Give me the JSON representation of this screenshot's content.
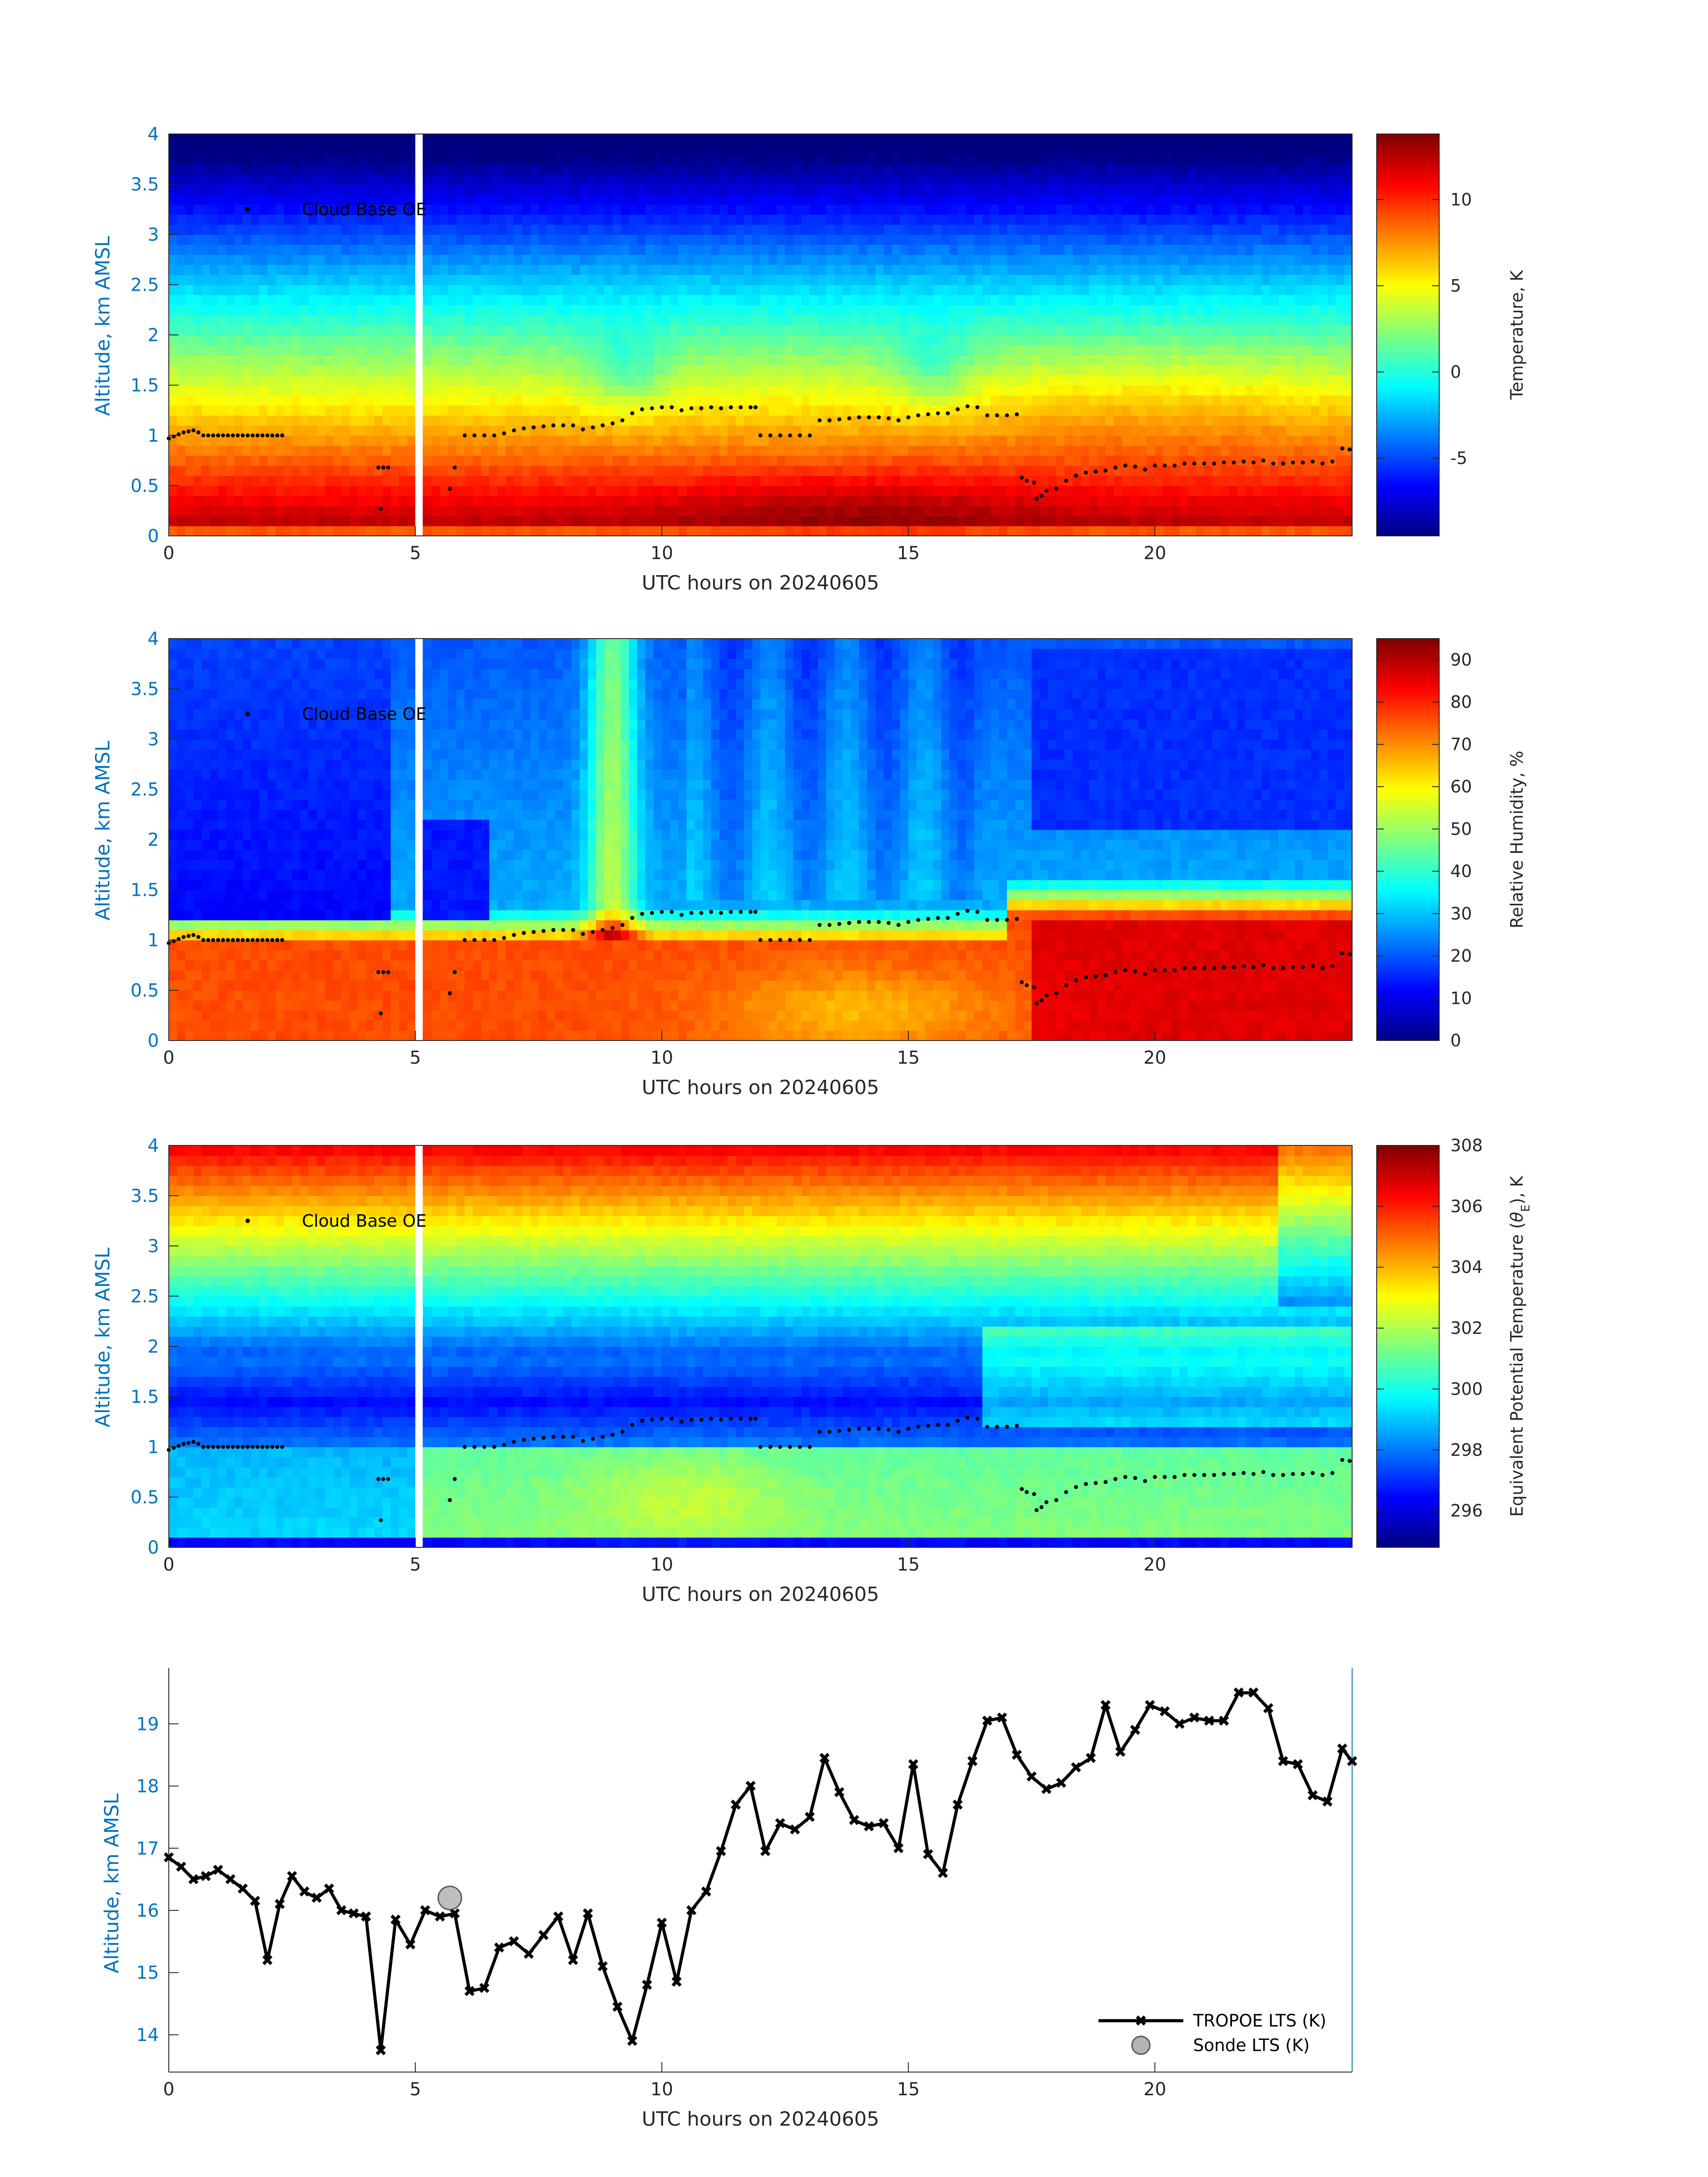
{
  "chart_data": [
    {
      "type": "heatmap",
      "variable": "temperature",
      "xlabel": "UTC hours on 20240605",
      "ylabel": "Altitude, km AMSL",
      "xlim": [
        0,
        24
      ],
      "ylim": [
        0,
        4
      ],
      "xticks": [
        0,
        5,
        10,
        15,
        20
      ],
      "yticks": [
        0,
        0.5,
        1,
        1.5,
        2,
        2.5,
        3,
        3.5,
        4
      ],
      "data_gap_hours": [
        5.0,
        5.15
      ],
      "colorbar": {
        "label": "Temperature, K",
        "range": [
          -9.5,
          13.8
        ],
        "ticks": [
          -5,
          0,
          5,
          10
        ],
        "colormap": "jet"
      },
      "annotation": "Cloud Base OE",
      "cloud_base_series": "cloud_base_km"
    },
    {
      "type": "heatmap",
      "variable": "relative_humidity",
      "xlabel": "UTC hours on 20240605",
      "ylabel": "Altitude, km AMSL",
      "xlim": [
        0,
        24
      ],
      "ylim": [
        0,
        4
      ],
      "xticks": [
        0,
        5,
        10,
        15,
        20
      ],
      "yticks": [
        0,
        0.5,
        1,
        1.5,
        2,
        2.5,
        3,
        3.5,
        4
      ],
      "data_gap_hours": [
        5.0,
        5.15
      ],
      "colorbar": {
        "label": "Relative Humidity, %",
        "range": [
          0,
          95
        ],
        "ticks": [
          0,
          10,
          20,
          30,
          40,
          50,
          60,
          70,
          80,
          90
        ],
        "colormap": "jet"
      },
      "annotation": "Cloud Base OE",
      "cloud_base_series": "cloud_base_km"
    },
    {
      "type": "heatmap",
      "variable": "equivalent_potential_temperature",
      "xlabel": "UTC hours on 20240605",
      "ylabel": "Altitude, km AMSL",
      "xlim": [
        0,
        24
      ],
      "ylim": [
        0,
        4
      ],
      "xticks": [
        0,
        5,
        10,
        15,
        20
      ],
      "yticks": [
        0,
        0.5,
        1,
        1.5,
        2,
        2.5,
        3,
        3.5,
        4
      ],
      "data_gap_hours": [
        5.0,
        5.15
      ],
      "colorbar": {
        "label": "Equivalent Potential Temperature (θE), K",
        "range": [
          294.8,
          308
        ],
        "ticks": [
          296,
          298,
          300,
          302,
          304,
          306,
          308
        ],
        "colormap": "jet"
      },
      "annotation": "Cloud Base OE",
      "cloud_base_series": "cloud_base_km"
    },
    {
      "type": "line",
      "xlabel": "UTC hours on 20240605",
      "ylabel": "Altitude, km AMSL",
      "xlim": [
        0,
        24
      ],
      "ylim": [
        13.4,
        19.9
      ],
      "xticks": [
        0,
        5,
        10,
        15,
        20
      ],
      "yticks": [
        14,
        15,
        16,
        17,
        18,
        19
      ],
      "legend_position": "bottom-right",
      "series": [
        {
          "name": "TROPOE LTS (K)",
          "x": [
            0.0,
            0.25,
            0.5,
            0.75,
            1.0,
            1.25,
            1.5,
            1.75,
            2.0,
            2.25,
            2.5,
            2.75,
            3.0,
            3.25,
            3.5,
            3.75,
            4.0,
            4.3,
            4.6,
            4.9,
            5.2,
            5.5,
            5.8,
            6.1,
            6.4,
            6.7,
            7.0,
            7.3,
            7.6,
            7.9,
            8.2,
            8.5,
            8.8,
            9.1,
            9.4,
            9.7,
            10.0,
            10.3,
            10.6,
            10.9,
            11.2,
            11.5,
            11.8,
            12.1,
            12.4,
            12.7,
            13.0,
            13.3,
            13.6,
            13.9,
            14.2,
            14.5,
            14.8,
            15.1,
            15.4,
            15.7,
            16.0,
            16.3,
            16.6,
            16.9,
            17.2,
            17.5,
            17.8,
            18.1,
            18.4,
            18.7,
            19.0,
            19.3,
            19.6,
            19.9,
            20.2,
            20.5,
            20.8,
            21.1,
            21.4,
            21.7,
            22.0,
            22.3,
            22.6,
            22.9,
            23.2,
            23.5,
            23.8,
            24.0
          ],
          "y": [
            16.85,
            16.7,
            16.5,
            16.55,
            16.65,
            16.5,
            16.35,
            16.15,
            15.2,
            16.1,
            16.55,
            16.3,
            16.2,
            16.35,
            16.0,
            15.95,
            15.9,
            13.75,
            15.85,
            15.45,
            16.0,
            15.9,
            15.95,
            14.7,
            14.75,
            15.4,
            15.5,
            15.3,
            15.6,
            15.9,
            15.2,
            15.95,
            15.1,
            14.45,
            13.9,
            14.8,
            15.8,
            14.85,
            16.0,
            16.3,
            16.95,
            17.7,
            18.0,
            16.95,
            17.4,
            17.3,
            17.5,
            18.45,
            17.9,
            17.45,
            17.35,
            17.4,
            17.0,
            18.35,
            16.9,
            16.6,
            17.7,
            18.4,
            19.05,
            19.1,
            18.5,
            18.15,
            17.95,
            18.05,
            18.3,
            18.45,
            19.3,
            18.55,
            18.9,
            19.3,
            19.2,
            19.0,
            19.1,
            19.05,
            19.05,
            19.5,
            19.5,
            19.25,
            18.4,
            18.35,
            17.85,
            17.75,
            18.6,
            18.4
          ]
        },
        {
          "name": "Sonde LTS (K)",
          "x": [
            5.7
          ],
          "y": [
            16.2
          ]
        }
      ]
    }
  ],
  "cloud_base_km": {
    "x": [
      0.0,
      0.1,
      0.2,
      0.3,
      0.4,
      0.5,
      0.6,
      0.7,
      0.8,
      0.9,
      1.0,
      1.1,
      1.2,
      1.3,
      1.4,
      1.5,
      1.6,
      1.7,
      1.8,
      1.9,
      2.0,
      2.1,
      2.2,
      2.3,
      4.25,
      4.3,
      4.35,
      4.45,
      5.7,
      5.8,
      6.0,
      6.2,
      6.4,
      6.6,
      6.8,
      7.0,
      7.2,
      7.4,
      7.6,
      7.8,
      8.0,
      8.2,
      8.4,
      8.6,
      8.8,
      9.0,
      9.2,
      9.4,
      9.6,
      9.8,
      10.0,
      10.2,
      10.4,
      10.6,
      10.8,
      11.0,
      11.2,
      11.4,
      11.6,
      11.8,
      11.9,
      12.0,
      12.2,
      12.4,
      12.6,
      12.8,
      13.0,
      13.2,
      13.4,
      13.6,
      13.8,
      14.0,
      14.2,
      14.4,
      14.6,
      14.8,
      15.0,
      15.2,
      15.4,
      15.6,
      15.8,
      16.0,
      16.2,
      16.4,
      16.6,
      16.8,
      17.0,
      17.2,
      17.3,
      17.4,
      17.55,
      17.6,
      17.7,
      17.8,
      18.0,
      18.2,
      18.4,
      18.6,
      18.8,
      19.0,
      19.2,
      19.4,
      19.6,
      19.8,
      20.0,
      20.2,
      20.4,
      20.6,
      20.8,
      21.0,
      21.2,
      21.4,
      21.6,
      21.8,
      22.0,
      22.2,
      22.4,
      22.6,
      22.8,
      23.0,
      23.2,
      23.4,
      23.6,
      23.8,
      23.95
    ],
    "y": [
      0.97,
      0.99,
      1.01,
      1.03,
      1.04,
      1.05,
      1.03,
      1.0,
      1.0,
      1.0,
      1.0,
      1.0,
      1.0,
      1.0,
      1.0,
      1.0,
      1.0,
      1.0,
      1.0,
      1.0,
      1.0,
      1.0,
      1.0,
      1.0,
      0.68,
      0.27,
      0.68,
      0.68,
      0.47,
      0.68,
      1.0,
      1.0,
      1.0,
      1.0,
      1.02,
      1.05,
      1.07,
      1.08,
      1.09,
      1.1,
      1.1,
      1.1,
      1.06,
      1.08,
      1.1,
      1.12,
      1.15,
      1.22,
      1.26,
      1.27,
      1.28,
      1.28,
      1.25,
      1.27,
      1.27,
      1.28,
      1.27,
      1.28,
      1.28,
      1.28,
      1.28,
      1.0,
      1.0,
      1.0,
      1.0,
      1.0,
      1.0,
      1.15,
      1.15,
      1.16,
      1.17,
      1.18,
      1.18,
      1.18,
      1.17,
      1.15,
      1.18,
      1.2,
      1.21,
      1.22,
      1.22,
      1.26,
      1.29,
      1.28,
      1.2,
      1.2,
      1.2,
      1.21,
      0.58,
      0.55,
      0.53,
      0.37,
      0.4,
      0.45,
      0.47,
      0.55,
      0.6,
      0.63,
      0.64,
      0.65,
      0.68,
      0.7,
      0.69,
      0.66,
      0.7,
      0.7,
      0.7,
      0.72,
      0.72,
      0.72,
      0.72,
      0.73,
      0.73,
      0.74,
      0.73,
      0.75,
      0.72,
      0.72,
      0.73,
      0.73,
      0.74,
      0.72,
      0.74,
      0.87,
      0.86
    ]
  },
  "ui": {
    "panels_xlabel": "UTC hours on 20240605",
    "panels_ylabel": "Altitude, km AMSL",
    "annotation": "Cloud Base OE",
    "cb1_label": "Temperature, K",
    "cb2_label": "Relative Humidity, %",
    "cb3_label_pre": "Equivalent Potential Temperature (",
    "cb3_label_theta": "θ",
    "cb3_label_sub": "E",
    "cb3_label_post": "), K",
    "legend_tropoe": "TROPOE LTS (K)",
    "legend_sonde": "Sonde LTS (K)"
  },
  "colors": {
    "axis_label": "#0072bd",
    "line": "#000000",
    "sonde_marker": "#b3b3b3",
    "colormap": "jet"
  }
}
